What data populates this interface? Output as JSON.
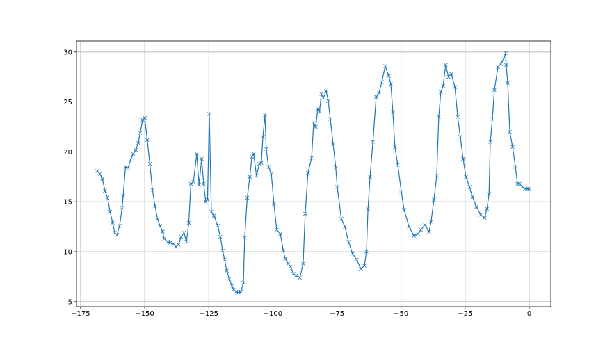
{
  "chart_data": {
    "type": "line",
    "color": "#1f77b4",
    "marker": "x",
    "grid": true,
    "xlim": [
      -176.6,
      8.4
    ],
    "ylim": [
      4.5,
      31.1
    ],
    "xticks": [
      {
        "value": -175,
        "label": "−175"
      },
      {
        "value": -150,
        "label": "−150"
      },
      {
        "value": -125,
        "label": "−125"
      },
      {
        "value": -100,
        "label": "−100"
      },
      {
        "value": -75,
        "label": "−75"
      },
      {
        "value": -50,
        "label": "−50"
      },
      {
        "value": -25,
        "label": "−25"
      },
      0
    ],
    "yticks": [
      5,
      10,
      15,
      20,
      25,
      30
    ],
    "x": [
      -168.5,
      -167.5,
      -166.5,
      -165.5,
      -164.5,
      -163.5,
      -162.5,
      -161.7,
      -160.8,
      -159.8,
      -158.8,
      -158.4,
      -157.5,
      -156.5,
      -155.5,
      -154.5,
      -153.5,
      -152.5,
      -151.8,
      -150.8,
      -150,
      -149,
      -148,
      -147,
      -146,
      -145,
      -144,
      -143,
      -142.4,
      -141,
      -140,
      -138.8,
      -137.8,
      -136.8,
      -135.8,
      -134.7,
      -133.7,
      -132.8,
      -132,
      -131,
      -129.7,
      -128.8,
      -127.8,
      -127,
      -126.2,
      -125.5,
      -124.8,
      -124,
      -123,
      -121.5,
      -120.5,
      -119.6,
      -118.8,
      -118,
      -117,
      -116,
      -115.3,
      -114.3,
      -113.4,
      -112.5,
      -111.5,
      -111,
      -110,
      -109,
      -108.2,
      -107.5,
      -106.4,
      -105.3,
      -104.5,
      -103.9,
      -103.1,
      -102.6,
      -101.7,
      -100.6,
      -99.6,
      -98.5,
      -97.1,
      -96,
      -95.2,
      -94,
      -93.1,
      -92,
      -91,
      -89.5,
      -88.2,
      -87.4,
      -86.3,
      -84.9,
      -84.1,
      -83.3,
      -82.5,
      -81.8,
      -81.1,
      -80.3,
      -79.2,
      -78.4,
      -77.6,
      -76.5,
      -75.5,
      -74.9,
      -73.3,
      -71.9,
      -70.5,
      -68.9,
      -67.3,
      -65.7,
      -64.3,
      -63.5,
      -62.9,
      -62.1,
      -61,
      -59.7,
      -58.6,
      -57.5,
      -56.2,
      -54.8,
      -54,
      -53.2,
      -52.4,
      -51.3,
      -49.9,
      -48.8,
      -46.9,
      -45,
      -43.4,
      -42.3,
      -40.7,
      -39.1,
      -38.3,
      -37.2,
      -36.1,
      -35.3,
      -34.5,
      -33.6,
      -32.6,
      -31.5,
      -30.4,
      -29,
      -27.9,
      -26.9,
      -25.8,
      -24.7,
      -23.3,
      -22.2,
      -20.6,
      -19,
      -17.4,
      -16.5,
      -15.7,
      -15.2,
      -14.4,
      -13.6,
      -12.2,
      -11.1,
      -10,
      -9.2,
      -9,
      -8.4,
      -7.6,
      -6.5,
      -5.4,
      -4.6,
      -3.8,
      -2.7,
      -1.6,
      -0.8,
      0
    ],
    "values": [
      18.1,
      17.8,
      17.3,
      16.1,
      15.4,
      14.0,
      12.9,
      11.9,
      11.7,
      12.6,
      14.4,
      15.6,
      18.5,
      18.4,
      19.2,
      19.8,
      20.2,
      20.9,
      21.9,
      23.2,
      23.4,
      21.2,
      18.8,
      16.2,
      14.6,
      13.3,
      12.6,
      12.0,
      11.3,
      11.0,
      10.9,
      10.8,
      10.5,
      10.7,
      11.5,
      11.9,
      11.0,
      12.9,
      16.8,
      17.0,
      19.8,
      16.7,
      19.3,
      16.8,
      15.0,
      15.2,
      23.8,
      14.0,
      13.6,
      12.6,
      11.5,
      10.1,
      9.2,
      8.1,
      7.3,
      6.6,
      6.2,
      6.0,
      5.9,
      6.0,
      6.9,
      11.4,
      15.4,
      17.5,
      19.5,
      19.8,
      17.6,
      18.8,
      18.9,
      21.5,
      23.7,
      20.3,
      18.5,
      17.8,
      14.8,
      12.2,
      11.8,
      10.2,
      9.3,
      8.8,
      8.5,
      7.8,
      7.6,
      7.4,
      8.8,
      13.8,
      17.9,
      19.4,
      22.9,
      22.5,
      24.3,
      24.0,
      25.8,
      25.4,
      26.1,
      25.1,
      23.3,
      20.8,
      18.5,
      16.5,
      13.3,
      12.5,
      11.0,
      9.8,
      9.2,
      8.3,
      8.6,
      10.0,
      14.3,
      17.5,
      21.0,
      25.5,
      25.9,
      27.0,
      28.6,
      27.6,
      26.8,
      24.0,
      20.5,
      18.7,
      16.0,
      14.2,
      12.5,
      11.6,
      11.8,
      12.2,
      12.7,
      12.0,
      13.0,
      15.2,
      17.6,
      23.5,
      26.0,
      26.6,
      28.7,
      27.5,
      27.8,
      26.5,
      23.5,
      21.5,
      19.3,
      17.5,
      16.5,
      15.5,
      14.5,
      13.7,
      13.4,
      14.3,
      15.8,
      21.0,
      23.3,
      26.2,
      28.5,
      28.8,
      29.3,
      29.9,
      28.7,
      26.9,
      22.0,
      20.5,
      18.5,
      16.8,
      16.8,
      16.5,
      16.3,
      16.3,
      16.3
    ]
  }
}
